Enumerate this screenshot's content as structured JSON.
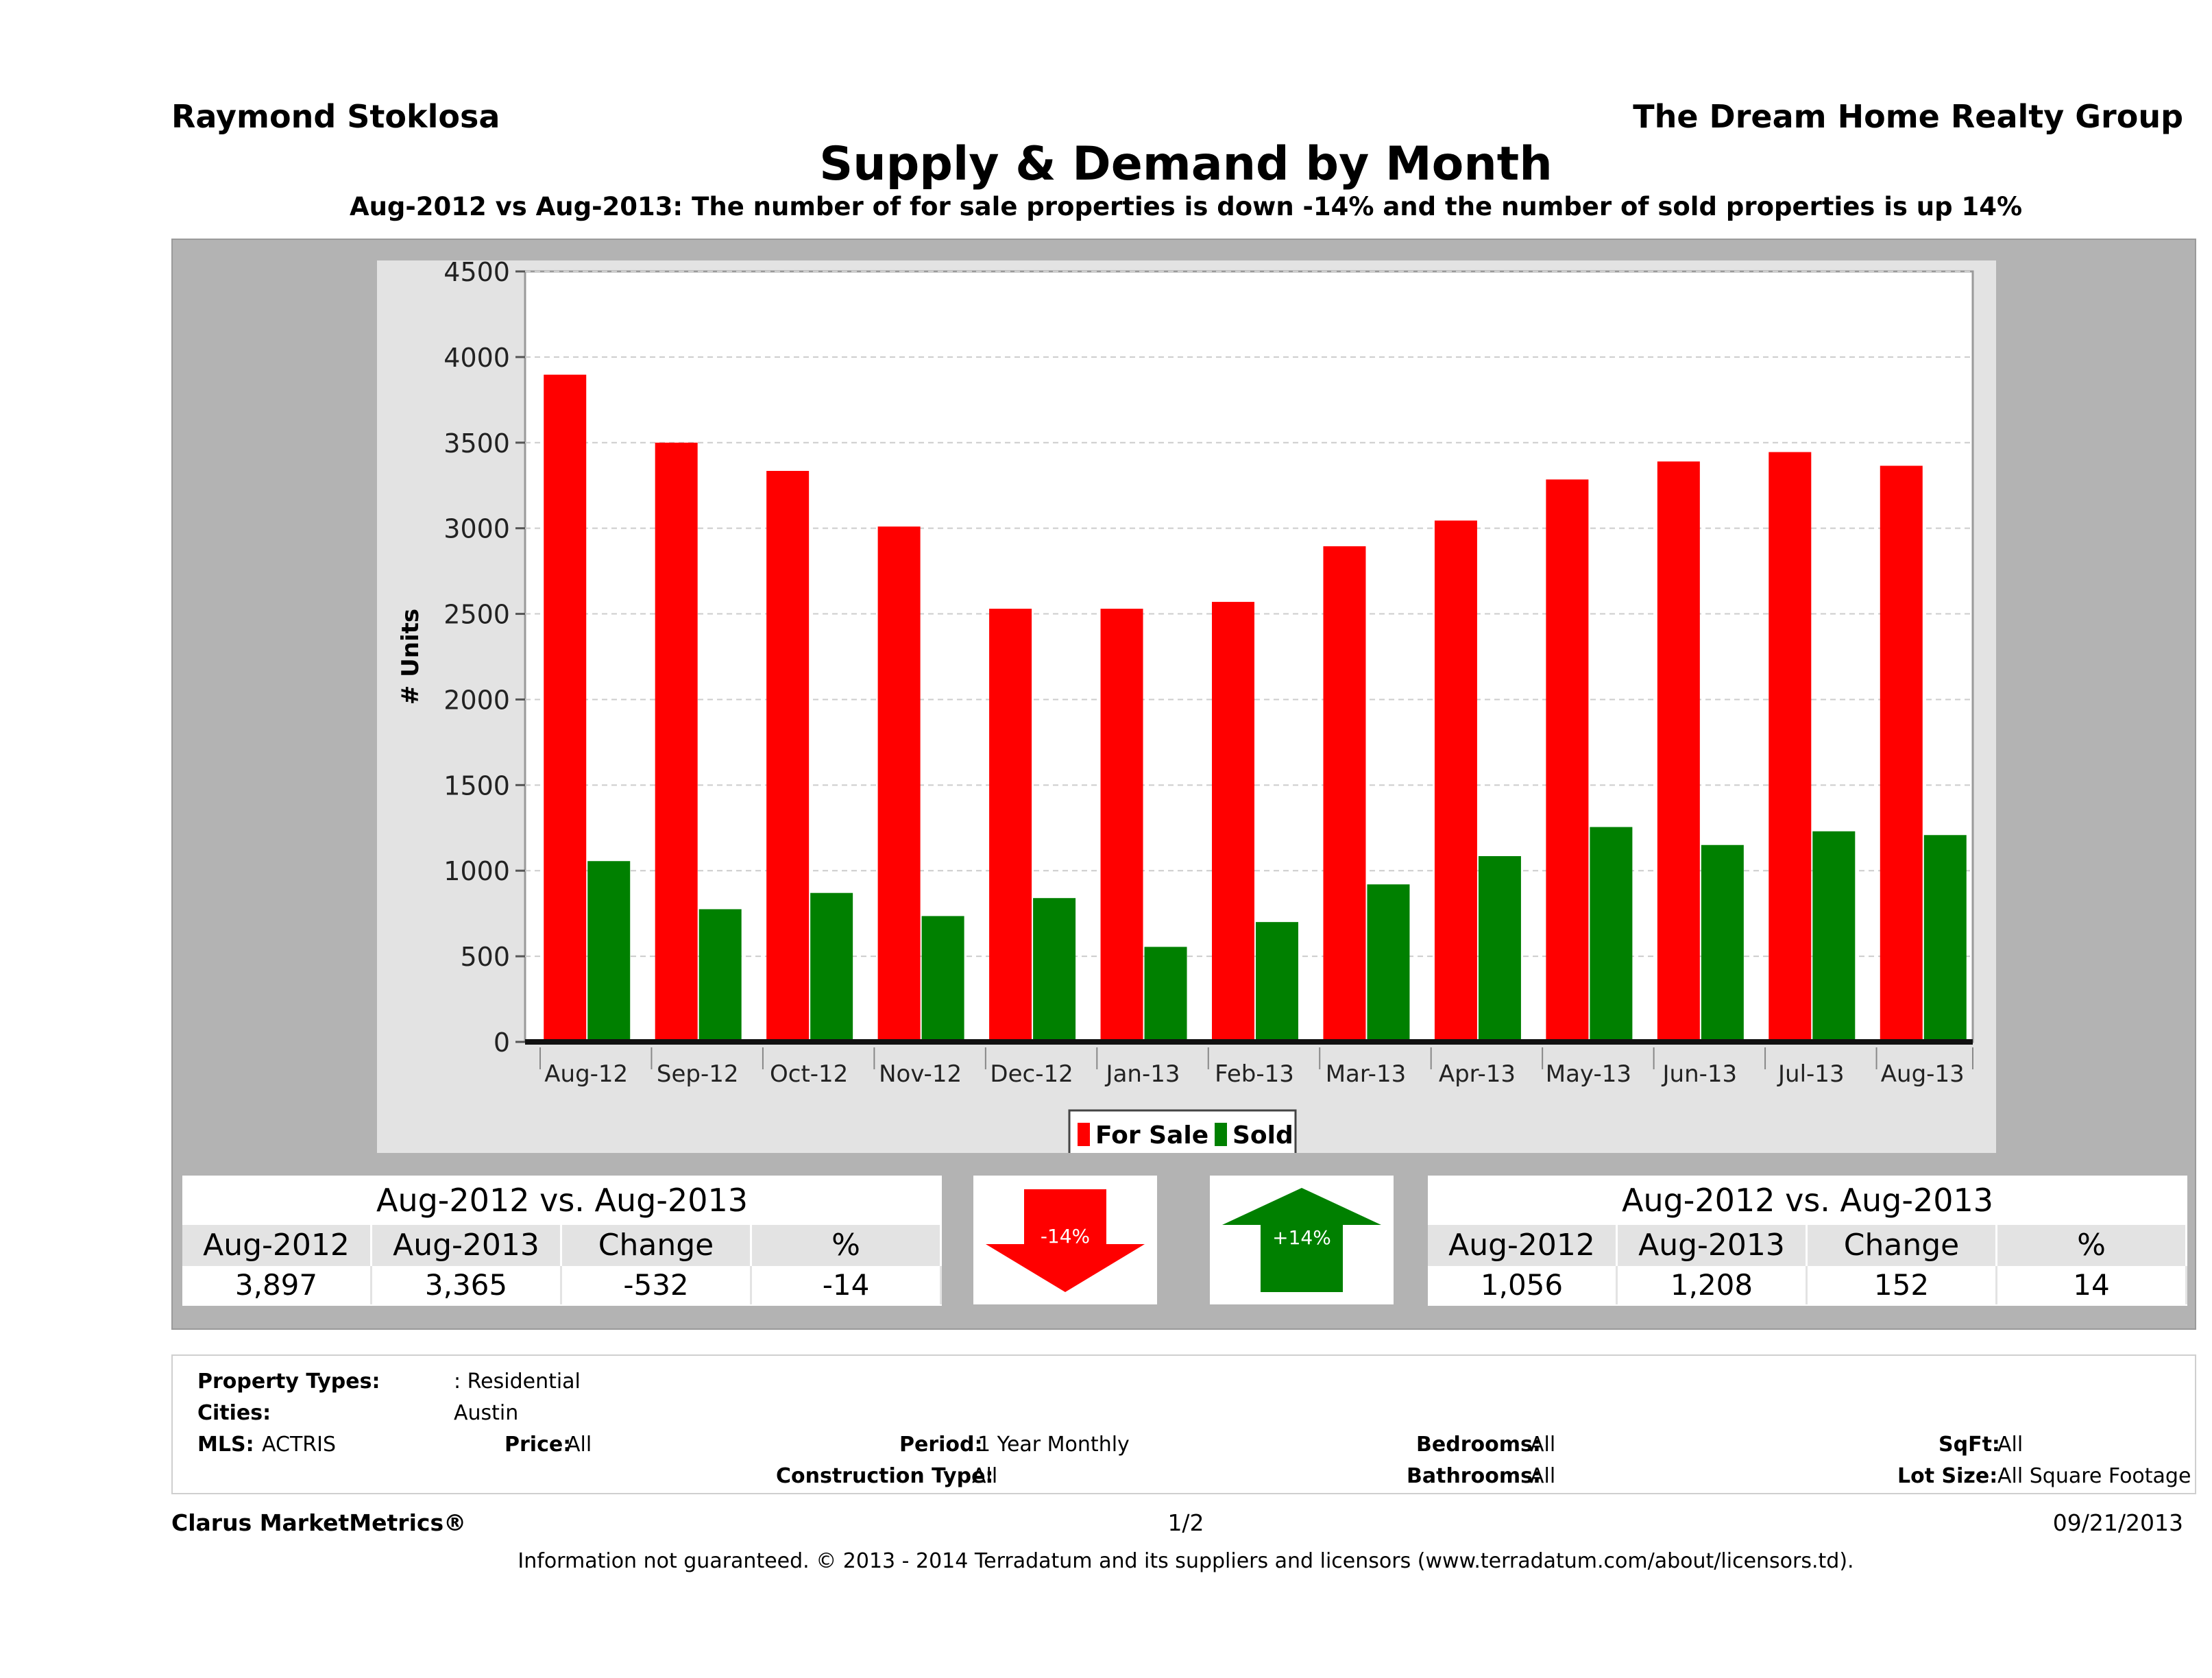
{
  "header": {
    "agent": "Raymond Stoklosa",
    "company": "The Dream Home Realty Group",
    "title": "Supply & Demand by Month",
    "subtitle": "Aug-2012 vs Aug-2013: The number of for sale properties is down -14% and the number of sold properties is up 14%"
  },
  "chart_data": {
    "type": "bar",
    "categories": [
      "Aug-12",
      "Sep-12",
      "Oct-12",
      "Nov-12",
      "Dec-12",
      "Jan-13",
      "Feb-13",
      "Mar-13",
      "Apr-13",
      "May-13",
      "Jun-13",
      "Jul-13",
      "Aug-13"
    ],
    "series": [
      {
        "name": "For Sale",
        "color": "#ff0000",
        "values": [
          3897,
          3500,
          3335,
          3010,
          2530,
          2530,
          2570,
          2895,
          3045,
          3285,
          3390,
          3445,
          3365
        ]
      },
      {
        "name": "Sold",
        "color": "#008000",
        "values": [
          1056,
          775,
          870,
          735,
          840,
          555,
          700,
          920,
          1085,
          1255,
          1150,
          1230,
          1208
        ]
      }
    ],
    "ylabel": "# Units",
    "xlabel": "",
    "ylim": [
      0,
      4500
    ],
    "yticks": [
      "0",
      "500",
      "1000",
      "1500",
      "2000",
      "2500",
      "3000",
      "3500",
      "4000",
      "4500"
    ],
    "grid": true,
    "legend_position": "bottom"
  },
  "left_stats": {
    "heading": "Aug-2012 vs. Aug-2013",
    "columns": [
      "Aug-2012",
      "Aug-2013",
      "Change",
      "%"
    ],
    "values": [
      "3,897",
      "3,365",
      "-532",
      "-14"
    ]
  },
  "right_stats": {
    "heading": "Aug-2012 vs. Aug-2013",
    "columns": [
      "Aug-2012",
      "Aug-2013",
      "Change",
      "%"
    ],
    "values": [
      "1,056",
      "1,208",
      "152",
      "14"
    ]
  },
  "arrows": {
    "down_label": "-14%",
    "down_color": "#ff0000",
    "up_label": "+14%",
    "up_color": "#008000"
  },
  "criteria": {
    "property_types_label": "Property Types:",
    "property_types_value": ": Residential",
    "cities_label": "Cities:",
    "cities_value": "Austin",
    "mls_label": "MLS:",
    "mls_value": "ACTRIS",
    "price_label": "Price:",
    "price_value": "All",
    "period_label": "Period:",
    "period_value": "1 Year Monthly",
    "construction_label": "Construction Type:",
    "construction_value": "All",
    "bedrooms_label": "Bedrooms:",
    "bedrooms_value": "All",
    "bathrooms_label": "Bathrooms:",
    "bathrooms_value": "All",
    "sqft_label": "SqFt:",
    "sqft_value": "All",
    "lotsize_label": "Lot Size:",
    "lotsize_value": "All Square Footage"
  },
  "footer": {
    "brand": "Clarus MarketMetrics®",
    "page": "1/2",
    "date": "09/21/2013",
    "disclaimer": "Information not guaranteed. © 2013 - 2014 Terradatum and its suppliers and licensors (www.terradatum.com/about/licensors.td)."
  }
}
